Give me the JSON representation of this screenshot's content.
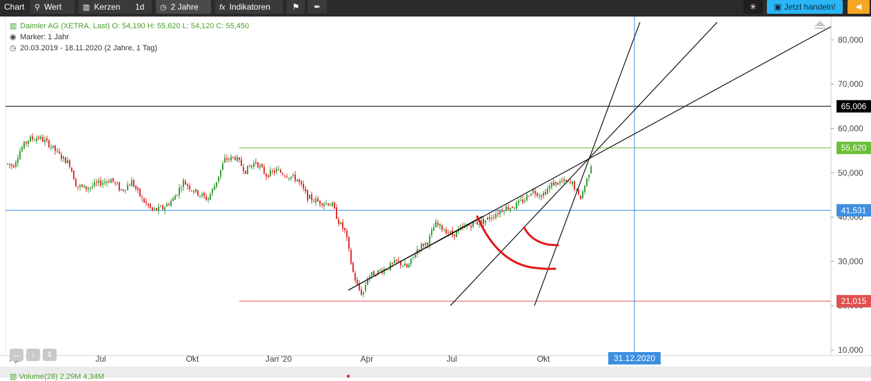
{
  "toolbar": {
    "chart_label": "Chart",
    "value_label": "Wert",
    "candles_label": "Kerzen",
    "interval_label": "1d",
    "range_label": "2 Jahre",
    "indicators_label": "Indikatoren",
    "trade_label": "Jetzt handeln!",
    "icons": [
      "search-icon",
      "candles-icon",
      "clock-icon",
      "fx-icon",
      "bookmark-icon",
      "draw-icon",
      "sparkle-icon",
      "trade-icon",
      "chevron-left-icon"
    ]
  },
  "legend": {
    "title": "Daimler AG (XETRA, Last)",
    "open": "O: 54,190",
    "high": "H: 55,620",
    "low": "L: 54,120",
    "close": "C: 55,450",
    "marker": "Marker: 1 Jahr",
    "period": "20.03.2019 - 18.11.2020",
    "period_note": "(2 Jahre, 1 Tag)"
  },
  "volume_label": "Volume(28)",
  "volume_values": "2,29M  4,34M",
  "colors": {
    "up": "#3a9e3a",
    "down": "#e03030",
    "hline_black": "#000000",
    "hline_green": "#6cbf3a",
    "hline_blue": "#3d8fe0",
    "hline_red": "#e05050",
    "annotation": "#e01818"
  },
  "chart_data": {
    "type": "candlestick",
    "y_ticks": [
      "10,000",
      "20,000",
      "30,000",
      "40,000",
      "50,000",
      "60,000",
      "70,000",
      "80,000"
    ],
    "ylim": [
      8000,
      84000
    ],
    "x_ticks": [
      "Apr",
      "Jul",
      "Okt",
      "Jan '20",
      "Apr",
      "Jul",
      "Okt"
    ],
    "crosshair_date": "31.12.2020",
    "price_levels": [
      {
        "label": "65,006",
        "value": 65.006,
        "color": "#000000"
      },
      {
        "label": "55,620",
        "value": 55.62,
        "color": "#6cbf3a"
      },
      {
        "label": "41,531",
        "value": 41.531,
        "color": "#3d8fe0"
      },
      {
        "label": "21,015",
        "value": 21.015,
        "color": "#e05050"
      }
    ],
    "price_path": [
      [
        0,
        52.0
      ],
      [
        8,
        51.5
      ],
      [
        18,
        55.0
      ],
      [
        30,
        57.5
      ],
      [
        45,
        58.0
      ],
      [
        60,
        56.5
      ],
      [
        75,
        54.0
      ],
      [
        90,
        52.0
      ],
      [
        100,
        47.0
      ],
      [
        115,
        46.5
      ],
      [
        130,
        47.5
      ],
      [
        150,
        48.5
      ],
      [
        165,
        46.0
      ],
      [
        180,
        48.0
      ],
      [
        195,
        44.0
      ],
      [
        210,
        41.5
      ],
      [
        225,
        42.0
      ],
      [
        240,
        44.0
      ],
      [
        255,
        48.0
      ],
      [
        270,
        46.0
      ],
      [
        290,
        44.0
      ],
      [
        300,
        47.0
      ],
      [
        315,
        53.0
      ],
      [
        330,
        53.5
      ],
      [
        345,
        50.5
      ],
      [
        360,
        52.5
      ],
      [
        375,
        49.5
      ],
      [
        390,
        50.5
      ],
      [
        405,
        49.5
      ],
      [
        420,
        48.5
      ],
      [
        435,
        44.5
      ],
      [
        450,
        43.5
      ],
      [
        470,
        43.0
      ],
      [
        480,
        39.0
      ],
      [
        490,
        36.5
      ],
      [
        500,
        28.0
      ],
      [
        508,
        24.0
      ],
      [
        515,
        22.5
      ],
      [
        522,
        26.5
      ],
      [
        535,
        27.5
      ],
      [
        550,
        28.5
      ],
      [
        565,
        30.0
      ],
      [
        580,
        28.5
      ],
      [
        595,
        33.0
      ],
      [
        610,
        34.5
      ],
      [
        620,
        38.5
      ],
      [
        630,
        37.5
      ],
      [
        645,
        36.0
      ],
      [
        660,
        37.5
      ],
      [
        675,
        38.5
      ],
      [
        690,
        39.0
      ],
      [
        705,
        40.5
      ],
      [
        720,
        42.0
      ],
      [
        735,
        42.5
      ],
      [
        750,
        44.0
      ],
      [
        760,
        46.0
      ],
      [
        775,
        45.0
      ],
      [
        790,
        47.5
      ],
      [
        805,
        48.0
      ],
      [
        820,
        47.5
      ],
      [
        830,
        44.0
      ],
      [
        840,
        48.5
      ],
      [
        848,
        53.0
      ],
      [
        856,
        55.4
      ]
    ],
    "trend_lines": [
      {
        "from": [
          505,
          23.5
        ],
        "to": [
          1205,
          83.0
        ]
      },
      {
        "from": [
          653,
          20.0
        ],
        "to": [
          1040,
          84.0
        ]
      },
      {
        "from": [
          775,
          20.0
        ],
        "to": [
          928,
          84.0
        ]
      }
    ]
  }
}
